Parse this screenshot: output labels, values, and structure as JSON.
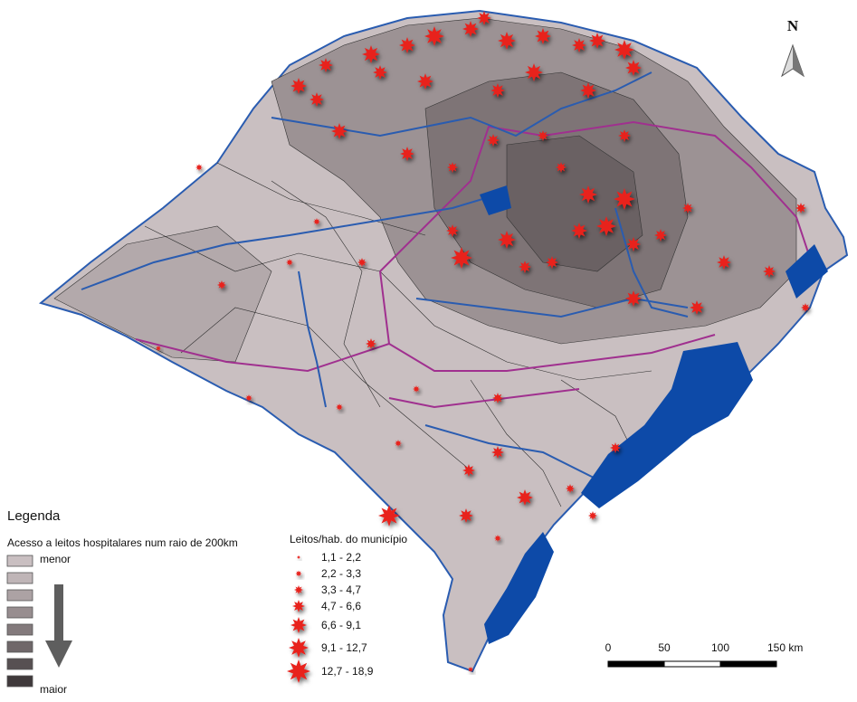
{
  "north_label": "N",
  "legend": {
    "title": "Legenda",
    "access": {
      "title": "Acesso a leitos hospitalares num raio de 200km",
      "low": "menor",
      "high": "maior"
    },
    "beds": {
      "title": "Leitos/hab. do município",
      "classes": [
        "1,1 - 2,2",
        "2,2 - 3,3",
        "3,3 - 4,7",
        "4,7 - 6,6",
        "6,6 - 9,1",
        "9,1 - 12,7",
        "12,7 - 18,9"
      ]
    }
  },
  "scale_bar": {
    "labels": [
      "0",
      "50",
      "100",
      "150 km"
    ]
  }
}
